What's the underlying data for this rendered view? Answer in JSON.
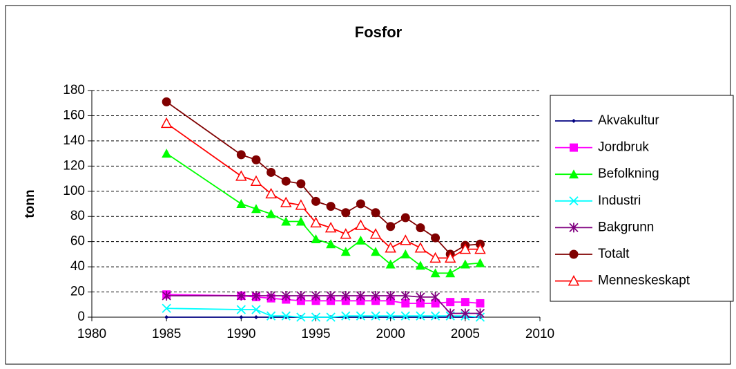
{
  "chart_data": {
    "type": "line",
    "title": "Fosfor",
    "y_label": "tonn",
    "x": [
      1985,
      1990,
      1991,
      1992,
      1993,
      1994,
      1995,
      1996,
      1997,
      1998,
      1999,
      2000,
      2001,
      2002,
      2003,
      2004,
      2005,
      2006
    ],
    "xlim": [
      1980,
      2010
    ],
    "xticks": [
      1980,
      1985,
      1990,
      1995,
      2000,
      2005,
      2010
    ],
    "ylim": [
      0,
      180
    ],
    "yticks": [
      0,
      20,
      40,
      60,
      80,
      100,
      120,
      140,
      160,
      180
    ],
    "grid": true,
    "legend": "right",
    "series": [
      {
        "name": "Akvakultur",
        "color": "#000080",
        "marker": "diamond",
        "values": [
          0,
          0,
          0,
          0,
          0,
          0,
          0,
          0,
          0,
          0,
          0,
          0,
          0,
          0,
          0,
          0,
          0,
          0
        ]
      },
      {
        "name": "Jordbruk",
        "color": "#ff00ff",
        "marker": "square",
        "values": [
          18,
          17,
          16,
          15,
          14,
          13,
          13,
          13,
          13,
          13,
          13,
          13,
          11,
          11,
          11,
          12,
          12,
          11
        ]
      },
      {
        "name": "Befolkning",
        "color": "#00ff00",
        "marker": "triangle",
        "values": [
          130,
          90,
          86,
          82,
          76,
          76,
          62,
          58,
          52,
          61,
          52,
          42,
          50,
          41,
          35,
          35,
          42,
          43
        ]
      },
      {
        "name": "Industri",
        "color": "#00ffff",
        "marker": "x",
        "values": [
          7,
          6,
          6,
          1,
          1,
          0,
          0,
          0,
          1,
          1,
          1,
          1,
          1,
          1,
          1,
          1,
          1,
          0
        ]
      },
      {
        "name": "Bakgrunn",
        "color": "#800080",
        "marker": "star",
        "values": [
          17,
          17,
          17,
          17,
          17,
          17,
          17,
          17,
          17,
          17,
          17,
          17,
          17,
          16,
          16,
          3,
          3,
          3
        ]
      },
      {
        "name": "Totalt",
        "color": "#800000",
        "marker": "circle",
        "values": [
          171,
          129,
          125,
          115,
          108,
          106,
          92,
          88,
          83,
          90,
          83,
          72,
          79,
          71,
          63,
          50,
          57,
          58
        ]
      },
      {
        "name": "Menneskeskapt",
        "color": "#ff0000",
        "marker": "open-triangle",
        "values": [
          154,
          112,
          108,
          98,
          91,
          89,
          75,
          71,
          66,
          73,
          66,
          55,
          61,
          55,
          47,
          47,
          54,
          54
        ]
      }
    ]
  }
}
